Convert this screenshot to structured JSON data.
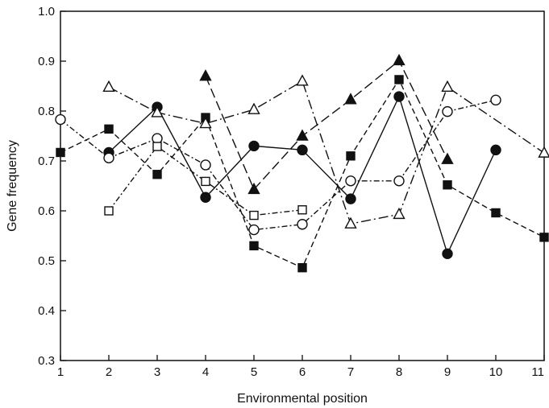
{
  "chart_data": {
    "type": "line",
    "title": "",
    "xlabel": "Environmental position",
    "ylabel": "Gene frequency",
    "xlim": [
      1,
      11
    ],
    "ylim": [
      0.3,
      1.0
    ],
    "x_ticks": [
      1,
      2,
      3,
      4,
      5,
      6,
      7,
      8,
      9,
      10,
      11
    ],
    "y_ticks": [
      "0.3",
      "0.4",
      "0.5",
      "0.6",
      "0.7",
      "0.8",
      "0.9",
      "1.0"
    ],
    "grid": false,
    "legend": "none",
    "series": [
      {
        "marker": "filled-circle",
        "line": "solid",
        "points": [
          [
            2,
            0.717
          ],
          [
            3,
            0.808
          ],
          [
            4,
            0.627
          ],
          [
            5,
            0.73
          ],
          [
            6,
            0.722
          ],
          [
            7,
            0.624
          ],
          [
            8,
            0.829
          ],
          [
            9,
            0.514
          ],
          [
            10,
            0.722
          ]
        ]
      },
      {
        "marker": "filled-square",
        "line": "dashed",
        "points": [
          [
            1,
            0.717
          ],
          [
            2,
            0.764
          ],
          [
            3,
            0.673
          ],
          [
            4,
            0.787
          ],
          [
            5,
            0.53
          ],
          [
            6,
            0.486
          ],
          [
            7,
            0.71
          ],
          [
            8,
            0.863
          ],
          [
            9,
            0.652
          ],
          [
            10,
            0.596
          ],
          [
            11,
            0.547
          ]
        ]
      },
      {
        "marker": "filled-triangle",
        "line": "long-dash",
        "points": [
          [
            4,
            0.87
          ],
          [
            5,
            0.643
          ],
          [
            6,
            0.75
          ],
          [
            7,
            0.823
          ],
          [
            8,
            0.901
          ],
          [
            9,
            0.703
          ]
        ]
      },
      {
        "marker": "open-circle",
        "line": "dash-dot",
        "points": [
          [
            1,
            0.783
          ],
          [
            2,
            0.706
          ],
          [
            3,
            0.745
          ],
          [
            4,
            0.692
          ],
          [
            5,
            0.562
          ],
          [
            6,
            0.573
          ],
          [
            7,
            0.66
          ],
          [
            8,
            0.66
          ],
          [
            9,
            0.799
          ],
          [
            10,
            0.822
          ]
        ]
      },
      {
        "marker": "open-square",
        "line": "dash-dot",
        "points": [
          [
            2,
            0.6
          ],
          [
            3,
            0.729
          ],
          [
            4,
            0.659
          ],
          [
            5,
            0.591
          ],
          [
            6,
            0.602
          ]
        ]
      },
      {
        "marker": "open-triangle",
        "line": "long-dash-dot",
        "points": [
          [
            2,
            0.848
          ],
          [
            3,
            0.797
          ],
          [
            4,
            0.775
          ],
          [
            5,
            0.803
          ],
          [
            6,
            0.86
          ],
          [
            7,
            0.574
          ],
          [
            8,
            0.593
          ],
          [
            9,
            0.848
          ],
          [
            11,
            0.716
          ]
        ]
      }
    ]
  }
}
